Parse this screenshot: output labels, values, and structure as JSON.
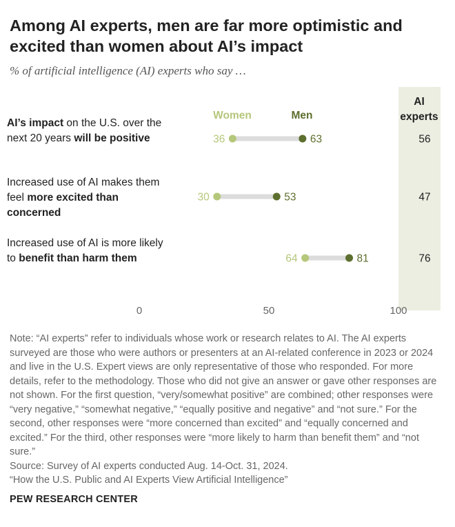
{
  "title": "Among AI experts, men are far more optimistic and excited than women about AI’s impact",
  "subtitle": "% of artificial intelligence (AI) experts who say …",
  "colors": {
    "women": "#b5c77a",
    "men": "#5d6f2e",
    "connector": "#dcdcdc",
    "column_bg": "#eceee2"
  },
  "legend": {
    "women": "Women",
    "men": "Men"
  },
  "column_header": {
    "line1": "AI",
    "line2": "experts"
  },
  "rows": [
    {
      "label_parts": [
        {
          "text": "AI’s impact",
          "bold": true
        },
        {
          "text": " on the U.S. over the next 20 years ",
          "bold": false
        },
        {
          "text": "will be positive",
          "bold": true
        }
      ]
    },
    {
      "label_parts": [
        {
          "text": "Increased use of AI makes them feel ",
          "bold": false
        },
        {
          "text": "more excited than concerned",
          "bold": true
        }
      ]
    },
    {
      "label_parts": [
        {
          "text": "Increased use of AI is more likely to ",
          "bold": false
        },
        {
          "text": "benefit than harm them",
          "bold": true
        }
      ]
    }
  ],
  "chart_data": {
    "type": "dot-plot",
    "categories": [
      "AI’s impact on the U.S. over the next 20 years will be positive",
      "Increased use of AI makes them feel more excited than concerned",
      "Increased use of AI is more likely to benefit than harm them"
    ],
    "series": [
      {
        "name": "Women",
        "values": [
          36,
          30,
          64
        ]
      },
      {
        "name": "Men",
        "values": [
          63,
          53,
          81
        ]
      }
    ],
    "column": {
      "name": "AI experts",
      "values": [
        56,
        47,
        76
      ]
    },
    "xlim": [
      0,
      100
    ],
    "xticks": [
      0,
      50,
      100
    ],
    "grid": false
  },
  "notes": [
    "Note: “AI experts” refer to individuals whose work or research relates to AI. The AI experts surveyed are those who were authors or presenters at an AI-related conference in 2023 or 2024 and live in the U.S. Expert views are only representative of those who responded. For more details, refer to the methodology. Those who did not give an answer or gave other responses are not shown. For the first question, “very/somewhat positive” are combined; other responses were “very negative,” “somewhat negative,” “equally positive and negative” and “not sure.” For the second, other responses were “more concerned than excited” and “equally concerned and excited.” For the third, other responses were “more likely to harm than benefit them” and “not sure.”",
    "Source: Survey of AI experts conducted Aug. 14-Oct. 31, 2024.",
    "“How the U.S. Public and AI Experts View Artificial Intelligence”"
  ],
  "footer": "PEW RESEARCH CENTER"
}
